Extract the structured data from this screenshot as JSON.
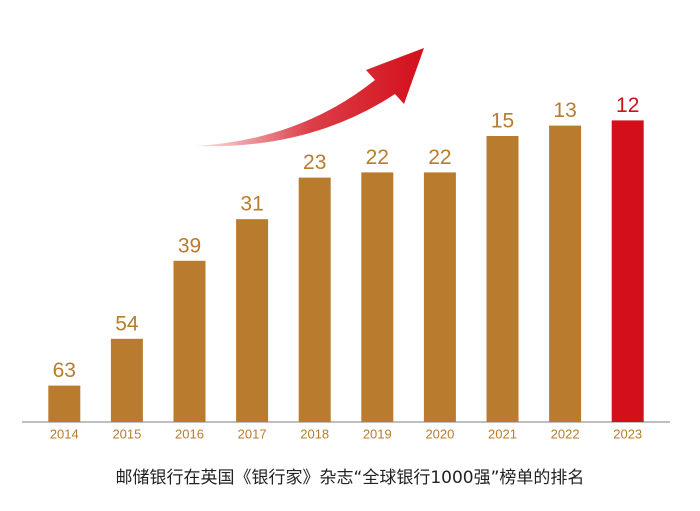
{
  "chart_data": {
    "type": "bar",
    "caption": "邮储银行在英国《银行家》杂志“全球银行1000强”榜单的排名",
    "categories": [
      "2014",
      "2015",
      "2016",
      "2017",
      "2018",
      "2019",
      "2020",
      "2021",
      "2022",
      "2023"
    ],
    "values": [
      63,
      54,
      39,
      31,
      23,
      22,
      22,
      15,
      13,
      12
    ],
    "colors": [
      "#b97b2e",
      "#b97b2e",
      "#b97b2e",
      "#b97b2e",
      "#b97b2e",
      "#b97b2e",
      "#b97b2e",
      "#b97b2e",
      "#b97b2e",
      "#d30f1b"
    ],
    "ylim": [
      70,
      0
    ]
  }
}
